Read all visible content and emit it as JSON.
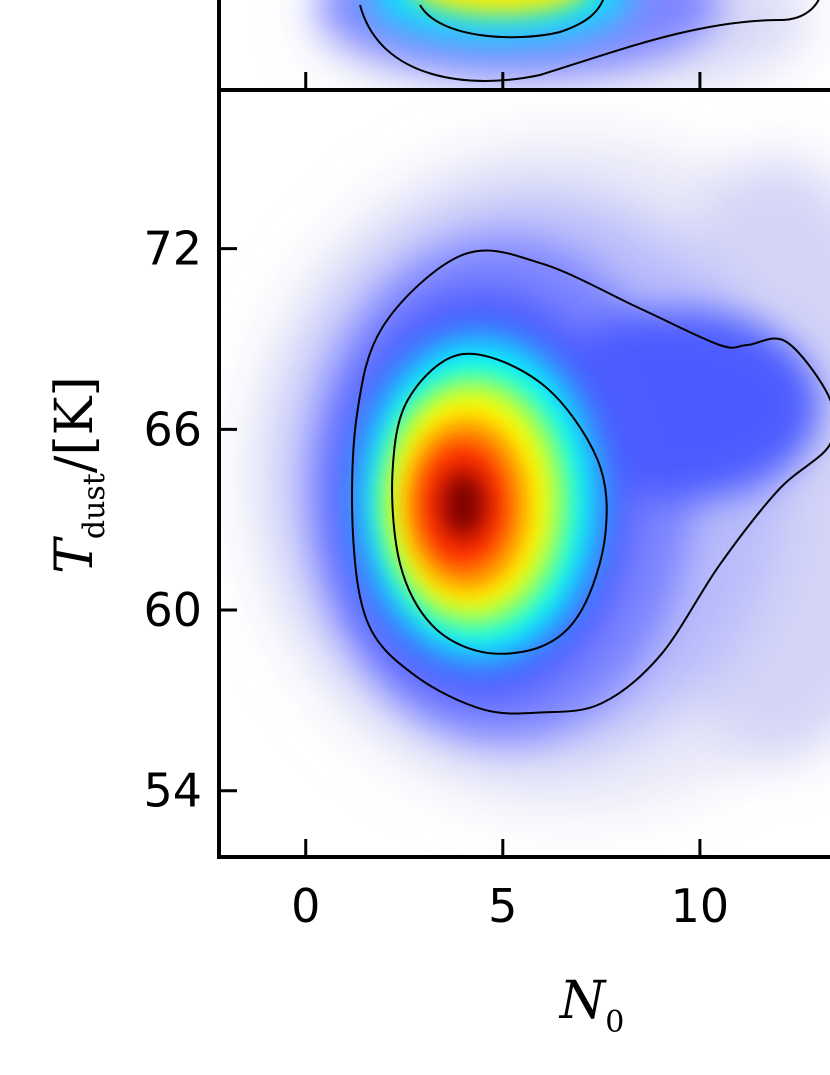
{
  "chart_data": {
    "type": "heatmap",
    "description_kind": "2D kernel density (posterior) with contour lines",
    "xlabel": "N",
    "xlabel_subscript": "0",
    "ylabel": "T",
    "ylabel_subscript": "dust",
    "ylabel_units": "/[K]",
    "xticks": [
      "0",
      "5",
      "10"
    ],
    "xtick_values": [
      0,
      5,
      10
    ],
    "yticks": [
      "54",
      "60",
      "66",
      "72"
    ],
    "ytick_values": [
      54,
      60,
      66,
      72
    ],
    "xlim": [
      -2.2,
      13.3
    ],
    "ylim": [
      51.8,
      77.2
    ],
    "colormap": "jet",
    "colors": {
      "peak": "#7a0000",
      "high": "#ff2a00",
      "mid": "#ffff00",
      "low": "#00ffff",
      "base": "#4b5cff",
      "tail": "#e9e9f8",
      "axis": "#000000"
    },
    "density_mode": {
      "x": 4.0,
      "y": 63.5
    },
    "contours": [
      {
        "level": "inner",
        "points": [
          [
            4.0,
            68.5
          ],
          [
            6.0,
            67.5
          ],
          [
            7.4,
            65.0
          ],
          [
            7.6,
            62.5
          ],
          [
            7.0,
            60.0
          ],
          [
            6.0,
            58.8
          ],
          [
            4.5,
            58.6
          ],
          [
            3.2,
            59.5
          ],
          [
            2.4,
            61.5
          ],
          [
            2.2,
            64.5
          ],
          [
            2.6,
            67.0
          ]
        ]
      },
      {
        "level": "outer",
        "points": [
          [
            4.0,
            71.8
          ],
          [
            6.0,
            71.5
          ],
          [
            8.5,
            70.0
          ],
          [
            10.5,
            68.8
          ],
          [
            11.2,
            68.8
          ],
          [
            12.2,
            68.9
          ],
          [
            13.3,
            67.0
          ],
          [
            13.3,
            65.5
          ],
          [
            12.0,
            64.0
          ],
          [
            10.5,
            61.5
          ],
          [
            9.0,
            58.5
          ],
          [
            7.5,
            56.9
          ],
          [
            6.0,
            56.6
          ],
          [
            4.5,
            56.7
          ],
          [
            2.8,
            57.8
          ],
          [
            1.6,
            59.5
          ],
          [
            1.2,
            62.5
          ],
          [
            1.3,
            66.5
          ],
          [
            2.0,
            69.5
          ]
        ]
      }
    ],
    "panel_above": {
      "xticks": [
        0,
        5,
        10
      ],
      "visible": "partial"
    }
  }
}
